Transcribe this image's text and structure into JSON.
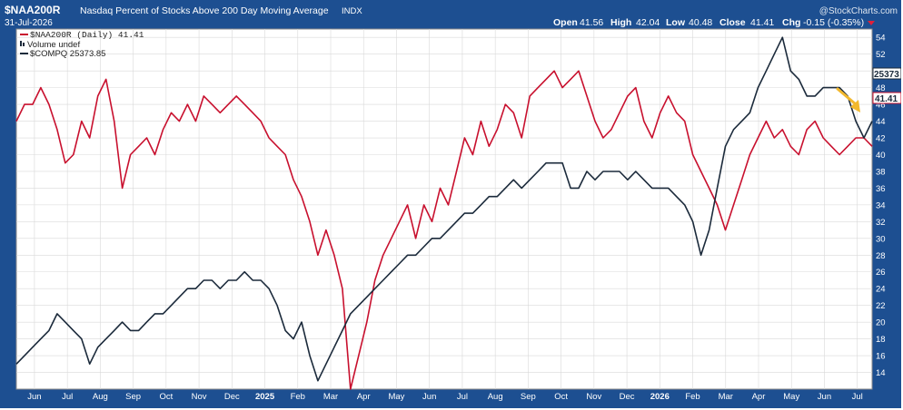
{
  "header": {
    "symbol": "$NAA200R",
    "description": "Nasdaq Percent of Stocks Above 200 Day Moving Average",
    "exchange": "INDX",
    "date": "31-Jul-2026",
    "watermark": "@StockCharts.com",
    "ohlc": {
      "open_label": "Open",
      "open": "41.56",
      "high_label": "High",
      "high": "42.04",
      "low_label": "Low",
      "low": "40.48",
      "close_label": "Close",
      "close": "41.41",
      "chg_label": "Chg",
      "chg": "-0.15 (-0.35%)"
    }
  },
  "legend": {
    "naa": "$NAA200R (Daily) 41.41",
    "volume": "Volume undef",
    "compq": "$COMPQ 25373.85"
  },
  "price_tags": {
    "compq": "25373",
    "naa": "41.41"
  },
  "colors": {
    "frame": "#1d4f91",
    "naa_line": "#c8102e",
    "compq_line": "#1b2a3b",
    "arrow": "#f2b82e",
    "grid": "#d9d9d9"
  },
  "chart_data": {
    "type": "line",
    "y_axis": {
      "side": "right",
      "range": [
        12,
        55
      ],
      "ticks": [
        "14",
        "16",
        "18",
        "20",
        "22",
        "24",
        "26",
        "28",
        "30",
        "32",
        "34",
        "36",
        "38",
        "40",
        "42",
        "44",
        "46",
        "48",
        "50",
        "52",
        "54"
      ]
    },
    "x_axis": {
      "months": [
        "Jun",
        "Jul",
        "Aug",
        "Sep",
        "Oct",
        "Nov",
        "Dec",
        "2025",
        "Feb",
        "Mar",
        "Apr",
        "May",
        "Jun",
        "Jul",
        "Aug",
        "Sep",
        "Oct",
        "Nov",
        "Dec",
        "2026",
        "Feb",
        "Mar",
        "Apr",
        "May",
        "Jun",
        "Jul"
      ],
      "bold": [
        "2025",
        "2026"
      ]
    },
    "grid": true,
    "series": [
      {
        "name": "$NAA200R (Daily)",
        "color": "#c8102e",
        "values": [
          44,
          46,
          46,
          48,
          46,
          43,
          39,
          40,
          44,
          42,
          47,
          49,
          44,
          36,
          40,
          41,
          42,
          40,
          43,
          45,
          44,
          46,
          44,
          47,
          46,
          45,
          46,
          47,
          46,
          45,
          44,
          42,
          41,
          40,
          37,
          35,
          32,
          28,
          31,
          28,
          24,
          12,
          16,
          20,
          25,
          28,
          30,
          32,
          34,
          30,
          34,
          32,
          36,
          34,
          38,
          42,
          40,
          44,
          41,
          43,
          46,
          45,
          42,
          47,
          48,
          49,
          50,
          48,
          49,
          50,
          47,
          44,
          42,
          43,
          45,
          47,
          48,
          44,
          42,
          45,
          47,
          45,
          44,
          40,
          38,
          36,
          34,
          31,
          34,
          37,
          40,
          42,
          44,
          42,
          43,
          41,
          40,
          43,
          44,
          42,
          41,
          40,
          41,
          42,
          42,
          41
        ]
      },
      {
        "name": "$COMPQ",
        "color": "#1b2a3b",
        "values": [
          15,
          16,
          17,
          18,
          19,
          21,
          20,
          19,
          18,
          15,
          17,
          18,
          19,
          20,
          19,
          19,
          20,
          21,
          21,
          22,
          23,
          24,
          24,
          25,
          25,
          24,
          25,
          25,
          26,
          25,
          25,
          24,
          22,
          19,
          18,
          20,
          16,
          13,
          15,
          17,
          19,
          21,
          22,
          23,
          24,
          25,
          26,
          27,
          28,
          28,
          29,
          30,
          30,
          31,
          32,
          33,
          33,
          34,
          35,
          35,
          36,
          37,
          36,
          37,
          38,
          39,
          39,
          39,
          36,
          36,
          38,
          37,
          38,
          38,
          38,
          37,
          38,
          37,
          36,
          36,
          36,
          35,
          34,
          32,
          28,
          31,
          36,
          41,
          43,
          44,
          45,
          48,
          50,
          52,
          54,
          50,
          49,
          47,
          47,
          48,
          48,
          48,
          47,
          44,
          42,
          44
        ]
      }
    ]
  }
}
